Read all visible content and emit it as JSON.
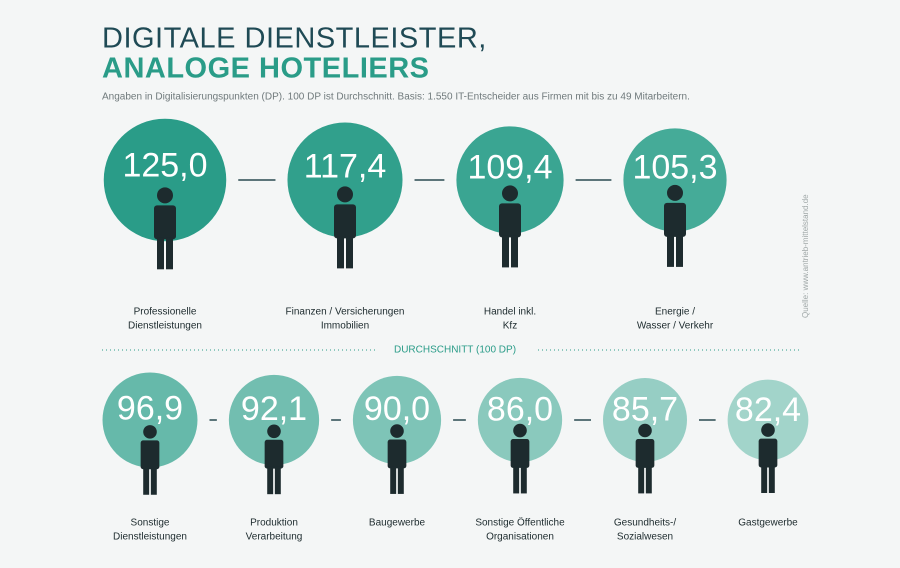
{
  "header": {
    "title": [
      "DIGITALE DIENSTLEISTER,",
      "ANALOGE HOTELIERS"
    ],
    "subtitle": "Angaben in Digitalisierungspunkten (DP). 100 DP ist Durchschnitt. Basis: 1.550 IT-Entscheider aus Firmen mit bis zu 49 Mitarbeitern.",
    "source": "Quelle: www.antrieb-mittelstand.de"
  },
  "chart_data": [
    {
      "type": "circles",
      "categories": [
        [
          "Professionelle",
          "Dienstleistungen"
        ],
        [
          "Finanzen / Versicherungen",
          "Immobilien"
        ],
        [
          "Handel inkl.",
          "Kfz"
        ],
        [
          "Energie /",
          "Wasser / Verkehr"
        ]
      ],
      "values": [
        125.0,
        117.4,
        109.4,
        105.3
      ],
      "value_labels": [
        "125,0",
        "117,4",
        "109,4",
        "105,3"
      ],
      "colors": [
        "#2a9c88",
        "#31a08c",
        "#3aa592",
        "#45ab98"
      ]
    },
    {
      "type": "circles",
      "reference": {
        "value": 100,
        "label": "DURCHSCHNITT (100 DP)"
      },
      "categories": [
        [
          "Sonstige",
          "Dienstleistungen"
        ],
        [
          "Produktion",
          "Verarbeitung"
        ],
        [
          "Baugewerbe"
        ],
        [
          "Sonstige Öffentliche",
          "Organisationen"
        ],
        [
          "Gesundheits-/",
          "Sozialwesen"
        ],
        [
          "Gastgewerbe"
        ]
      ],
      "values": [
        96.9,
        92.1,
        90.0,
        86.0,
        85.7,
        82.4
      ],
      "value_labels": [
        "96,9",
        "92,1",
        "90,0",
        "86,0",
        "85,7",
        "82,4"
      ],
      "colors": [
        "#66b9aa",
        "#72beb0",
        "#7ec4b7",
        "#8ac9bd",
        "#96cec4",
        "#a2d4ca"
      ]
    }
  ]
}
